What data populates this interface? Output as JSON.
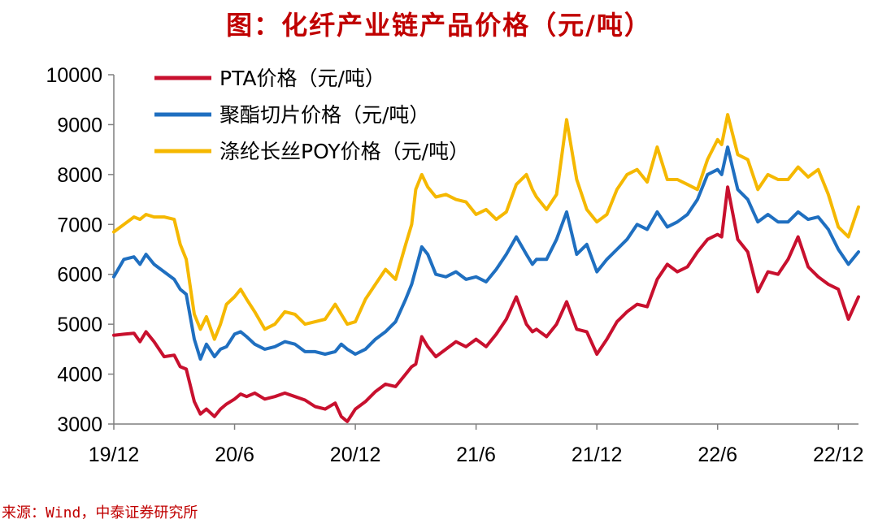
{
  "title": "图：化纤产业链产品价格（元/吨）",
  "source": "来源：Wind，中泰证券研究所",
  "colors": {
    "pta": "#c8102e",
    "polyester_chip": "#1f6fc0",
    "poy": "#f5b800",
    "axis": "#7f7f7f",
    "title": "#c00000"
  },
  "chart_data": {
    "type": "line",
    "title": "图：化纤产业链产品价格（元/吨）",
    "xlabel": "",
    "ylabel": "",
    "ylim": [
      3000,
      10000
    ],
    "yticks": [
      "3000",
      "4000",
      "5000",
      "6000",
      "7000",
      "8000",
      "9000",
      "10000"
    ],
    "xlim": [
      0,
      37
    ],
    "xticks": [
      {
        "label": "19/12",
        "x": 0
      },
      {
        "label": "20/6",
        "x": 6
      },
      {
        "label": "20/12",
        "x": 12
      },
      {
        "label": "21/6",
        "x": 18
      },
      {
        "label": "21/12",
        "x": 24
      },
      {
        "label": "22/6",
        "x": 30
      },
      {
        "label": "22/12",
        "x": 36
      }
    ],
    "legend_position": "top-left",
    "series": [
      {
        "key": "pta",
        "name": "PTA价格（元/吨）",
        "x": [
          0,
          0.5,
          1,
          1.3,
          1.6,
          2,
          2.5,
          3,
          3.3,
          3.6,
          4,
          4.3,
          4.6,
          5,
          5.3,
          5.6,
          6,
          6.3,
          6.6,
          7,
          7.5,
          8,
          8.5,
          9,
          9.5,
          10,
          10.5,
          11,
          11.3,
          11.6,
          12,
          12.5,
          13,
          13.5,
          14,
          14.5,
          14.8,
          15,
          15.3,
          15.6,
          16,
          16.5,
          17,
          17.5,
          18,
          18.5,
          19,
          19.5,
          20,
          20.5,
          20.8,
          21,
          21.5,
          22,
          22.5,
          23,
          23.5,
          24,
          24.5,
          25,
          25.5,
          26,
          26.5,
          27,
          27.5,
          28,
          28.5,
          29,
          29.5,
          30,
          30.2,
          30.5,
          31,
          31.5,
          32,
          32.5,
          33,
          33.5,
          34,
          34.5,
          35,
          35.5,
          36,
          36.5,
          37
        ],
        "values": [
          4780,
          4800,
          4820,
          4650,
          4850,
          4650,
          4350,
          4380,
          4150,
          4100,
          3450,
          3200,
          3300,
          3150,
          3300,
          3400,
          3500,
          3600,
          3550,
          3620,
          3500,
          3550,
          3620,
          3550,
          3480,
          3350,
          3300,
          3420,
          3150,
          3050,
          3300,
          3450,
          3650,
          3800,
          3750,
          4000,
          4150,
          4200,
          4750,
          4550,
          4350,
          4500,
          4650,
          4550,
          4700,
          4550,
          4800,
          5100,
          5550,
          5000,
          4850,
          4900,
          4750,
          5000,
          5450,
          4900,
          4850,
          4400,
          4700,
          5050,
          5250,
          5400,
          5350,
          5900,
          6200,
          6050,
          6150,
          6450,
          6700,
          6800,
          6750,
          7750,
          6700,
          6450,
          5650,
          6050,
          6000,
          6300,
          6750,
          6150,
          5950,
          5800,
          5700,
          5100,
          5550
        ]
      },
      {
        "key": "polyester_chip",
        "name": "聚酯切片价格（元/吨）",
        "x": [
          0,
          0.5,
          1,
          1.3,
          1.6,
          2,
          2.5,
          3,
          3.3,
          3.6,
          4,
          4.3,
          4.6,
          5,
          5.3,
          5.6,
          6,
          6.3,
          6.6,
          7,
          7.5,
          8,
          8.5,
          9,
          9.5,
          10,
          10.5,
          11,
          11.3,
          11.6,
          12,
          12.5,
          13,
          13.5,
          14,
          14.5,
          14.8,
          15,
          15.3,
          15.6,
          16,
          16.5,
          17,
          17.5,
          18,
          18.5,
          19,
          19.5,
          20,
          20.5,
          20.8,
          21,
          21.5,
          22,
          22.5,
          23,
          23.5,
          24,
          24.5,
          25,
          25.5,
          26,
          26.5,
          27,
          27.5,
          28,
          28.5,
          29,
          29.5,
          30,
          30.2,
          30.5,
          31,
          31.5,
          32,
          32.5,
          33,
          33.5,
          34,
          34.5,
          35,
          35.5,
          36,
          36.5,
          37
        ],
        "values": [
          5950,
          6300,
          6350,
          6200,
          6400,
          6200,
          6050,
          5900,
          5700,
          5600,
          4700,
          4300,
          4600,
          4350,
          4500,
          4550,
          4800,
          4850,
          4750,
          4600,
          4500,
          4550,
          4650,
          4600,
          4450,
          4450,
          4400,
          4450,
          4600,
          4500,
          4400,
          4500,
          4700,
          4850,
          5050,
          5500,
          5800,
          6100,
          6550,
          6400,
          6000,
          5950,
          6050,
          5900,
          5950,
          5850,
          6100,
          6400,
          6750,
          6400,
          6200,
          6300,
          6300,
          6700,
          7250,
          6400,
          6600,
          6050,
          6300,
          6500,
          6700,
          7000,
          6900,
          7250,
          6950,
          7050,
          7200,
          7500,
          8000,
          8100,
          8000,
          8550,
          7700,
          7500,
          7050,
          7200,
          7050,
          7050,
          7250,
          7100,
          7150,
          6900,
          6500,
          6200,
          6450
        ]
      },
      {
        "key": "poy",
        "name": "涤纶长丝POY价格（元/吨）",
        "x": [
          0,
          0.5,
          1,
          1.3,
          1.6,
          2,
          2.5,
          3,
          3.3,
          3.6,
          4,
          4.3,
          4.6,
          5,
          5.3,
          5.6,
          6,
          6.3,
          6.6,
          7,
          7.5,
          8,
          8.5,
          9,
          9.5,
          10,
          10.5,
          11,
          11.3,
          11.6,
          12,
          12.5,
          13,
          13.5,
          14,
          14.5,
          14.8,
          15,
          15.3,
          15.6,
          16,
          16.5,
          17,
          17.5,
          18,
          18.5,
          19,
          19.5,
          20,
          20.5,
          20.8,
          21,
          21.5,
          22,
          22.5,
          23,
          23.5,
          24,
          24.5,
          25,
          25.5,
          26,
          26.5,
          27,
          27.5,
          28,
          28.5,
          29,
          29.5,
          30,
          30.2,
          30.5,
          31,
          31.5,
          32,
          32.5,
          33,
          33.5,
          34,
          34.5,
          35,
          35.5,
          36,
          36.5,
          37
        ],
        "values": [
          6850,
          7000,
          7150,
          7100,
          7200,
          7150,
          7150,
          7100,
          6600,
          6300,
          5200,
          4900,
          5150,
          4700,
          5000,
          5400,
          5550,
          5700,
          5500,
          5250,
          4900,
          5000,
          5250,
          5200,
          5000,
          5050,
          5100,
          5400,
          5200,
          5000,
          5050,
          5500,
          5800,
          6100,
          5900,
          6600,
          7000,
          7700,
          8000,
          7750,
          7550,
          7600,
          7500,
          7450,
          7200,
          7300,
          7100,
          7250,
          7800,
          8000,
          7700,
          7550,
          7300,
          7600,
          9100,
          7900,
          7300,
          7050,
          7200,
          7700,
          8000,
          8100,
          7850,
          8550,
          7900,
          7900,
          7800,
          7700,
          8300,
          8700,
          8600,
          9200,
          8400,
          8300,
          7700,
          8000,
          7900,
          7900,
          8150,
          7950,
          8100,
          7600,
          6950,
          6750,
          7350
        ]
      }
    ]
  }
}
